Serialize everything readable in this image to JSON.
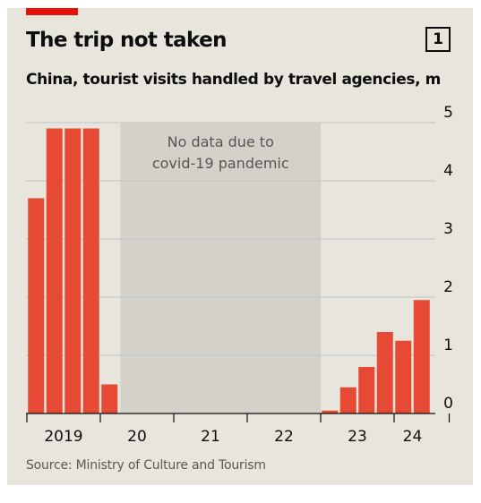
{
  "header": {
    "title": "The trip not taken",
    "chart_number": "1",
    "subtitle": "China, tourist visits handled by travel agencies, m"
  },
  "footer": {
    "source": "Source: Ministry of Culture and Tourism"
  },
  "colors": {
    "background": "#e8e5dc",
    "accent": "#e3120b",
    "bar": "#e64934",
    "shade": "#d4d1c9",
    "gridline": "#b7c6cf"
  },
  "chart_data": {
    "type": "bar",
    "title": "The trip not taken",
    "subtitle": "China, tourist visits handled by travel agencies, m",
    "unit": "m",
    "frequency": "quarterly",
    "categories": [
      "2019 Q1",
      "2019 Q2",
      "2019 Q3",
      "2019 Q4",
      "2020 Q1",
      "2020 Q2",
      "2020 Q3",
      "2020 Q4",
      "2021 Q1",
      "2021 Q2",
      "2021 Q3",
      "2021 Q4",
      "2022 Q1",
      "2022 Q2",
      "2022 Q3",
      "2022 Q4",
      "2023 Q1",
      "2023 Q2",
      "2023 Q3",
      "2023 Q4",
      "2024 Q1",
      "2024 Q2"
    ],
    "values": [
      3.7,
      4.9,
      4.9,
      4.9,
      0.5,
      null,
      null,
      null,
      null,
      null,
      null,
      null,
      null,
      null,
      null,
      null,
      0.05,
      0.45,
      0.8,
      1.4,
      1.25,
      1.95
    ],
    "ylim": [
      0,
      5
    ],
    "yticks": [
      0,
      1,
      2,
      3,
      4,
      5
    ],
    "y_axis_position": "right",
    "grid": true,
    "year_labels": [
      {
        "label": "2019",
        "index": 1.5
      },
      {
        "label": "20",
        "index": 5.5
      },
      {
        "label": "21",
        "index": 9.5
      },
      {
        "label": "22",
        "index": 13.5
      },
      {
        "label": "23",
        "index": 17.5
      },
      {
        "label": "24",
        "index": 20.5
      }
    ],
    "year_boundaries": [
      -0.5,
      3.5,
      7.5,
      11.5,
      15.5,
      19.5,
      22.5
    ],
    "annotation": {
      "lines": [
        "No data due to",
        "covid-19 pandemic"
      ],
      "from_index": 5,
      "to_index": 15
    },
    "xlabel": "",
    "ylabel": ""
  }
}
